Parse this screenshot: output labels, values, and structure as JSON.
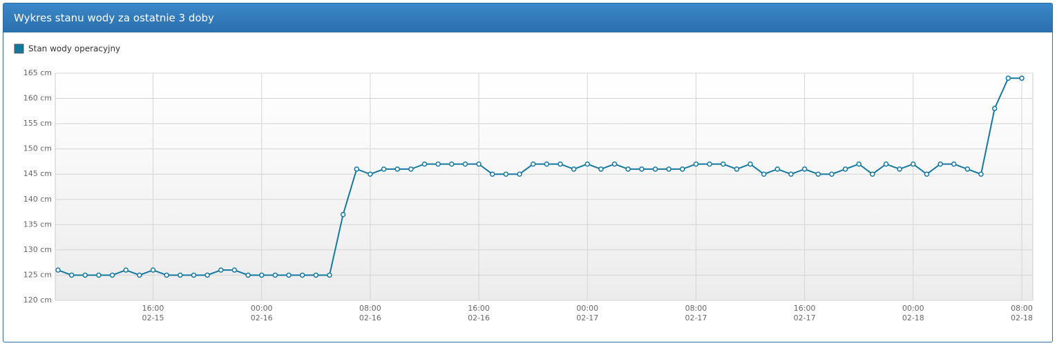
{
  "chart_data": {
    "type": "line",
    "title": "Wykres stanu wody za ostatnie 3 doby",
    "x": [
      "02-15 09:00",
      "02-15 10:00",
      "02-15 11:00",
      "02-15 12:00",
      "02-15 13:00",
      "02-15 14:00",
      "02-15 15:00",
      "02-15 16:00",
      "02-15 17:00",
      "02-15 18:00",
      "02-15 19:00",
      "02-15 20:00",
      "02-15 21:00",
      "02-15 22:00",
      "02-15 23:00",
      "02-16 00:00",
      "02-16 01:00",
      "02-16 02:00",
      "02-16 03:00",
      "02-16 04:00",
      "02-16 05:00",
      "02-16 06:00",
      "02-16 07:00",
      "02-16 08:00",
      "02-16 09:00",
      "02-16 10:00",
      "02-16 11:00",
      "02-16 12:00",
      "02-16 13:00",
      "02-16 14:00",
      "02-16 15:00",
      "02-16 16:00",
      "02-16 17:00",
      "02-16 18:00",
      "02-16 19:00",
      "02-16 20:00",
      "02-16 21:00",
      "02-16 22:00",
      "02-16 23:00",
      "02-17 00:00",
      "02-17 01:00",
      "02-17 02:00",
      "02-17 03:00",
      "02-17 04:00",
      "02-17 05:00",
      "02-17 06:00",
      "02-17 07:00",
      "02-17 08:00",
      "02-17 09:00",
      "02-17 10:00",
      "02-17 11:00",
      "02-17 12:00",
      "02-17 13:00",
      "02-17 14:00",
      "02-17 15:00",
      "02-17 16:00",
      "02-17 17:00",
      "02-17 18:00",
      "02-17 19:00",
      "02-17 20:00",
      "02-17 21:00",
      "02-17 22:00",
      "02-17 23:00",
      "02-18 00:00",
      "02-18 01:00",
      "02-18 02:00",
      "02-18 03:00",
      "02-18 04:00",
      "02-18 05:00",
      "02-18 06:00",
      "02-18 07:00",
      "02-18 08:00"
    ],
    "series": [
      {
        "name": "Stan wody operacyjny",
        "color": "#14789f",
        "values": [
          126,
          125,
          125,
          125,
          125,
          126,
          125,
          126,
          125,
          125,
          125,
          125,
          126,
          126,
          125,
          125,
          125,
          125,
          125,
          125,
          125,
          137,
          146,
          145,
          146,
          146,
          146,
          147,
          147,
          147,
          147,
          147,
          145,
          145,
          145,
          147,
          147,
          147,
          146,
          147,
          146,
          147,
          146,
          146,
          146,
          146,
          146,
          147,
          147,
          147,
          146,
          147,
          145,
          146,
          145,
          146,
          145,
          145,
          146,
          147,
          145,
          147,
          146,
          147,
          145,
          147,
          147,
          146,
          145,
          158,
          164,
          164
        ]
      }
    ],
    "ylim": [
      120,
      165
    ],
    "yticks": [
      {
        "value": 120,
        "label": "120 cm"
      },
      {
        "value": 125,
        "label": "125 cm"
      },
      {
        "value": 130,
        "label": "130 cm"
      },
      {
        "value": 135,
        "label": "135 cm"
      },
      {
        "value": 140,
        "label": "140 cm"
      },
      {
        "value": 145,
        "label": "145 cm"
      },
      {
        "value": 150,
        "label": "150 cm"
      },
      {
        "value": 155,
        "label": "155 cm"
      },
      {
        "value": 160,
        "label": "160 cm"
      },
      {
        "value": 165,
        "label": "165 cm"
      }
    ],
    "xticks": [
      {
        "value": "02-15 16:00",
        "label": [
          "16:00",
          "02-15"
        ]
      },
      {
        "value": "02-16 00:00",
        "label": [
          "00:00",
          "02-16"
        ]
      },
      {
        "value": "02-16 08:00",
        "label": [
          "08:00",
          "02-16"
        ]
      },
      {
        "value": "02-16 16:00",
        "label": [
          "16:00",
          "02-16"
        ]
      },
      {
        "value": "02-17 00:00",
        "label": [
          "00:00",
          "02-17"
        ]
      },
      {
        "value": "02-17 08:00",
        "label": [
          "08:00",
          "02-17"
        ]
      },
      {
        "value": "02-17 16:00",
        "label": [
          "16:00",
          "02-17"
        ]
      },
      {
        "value": "02-18 00:00",
        "label": [
          "00:00",
          "02-18"
        ]
      },
      {
        "value": "02-18 08:00",
        "label": [
          "08:00",
          "02-18"
        ]
      }
    ],
    "grid": true
  }
}
